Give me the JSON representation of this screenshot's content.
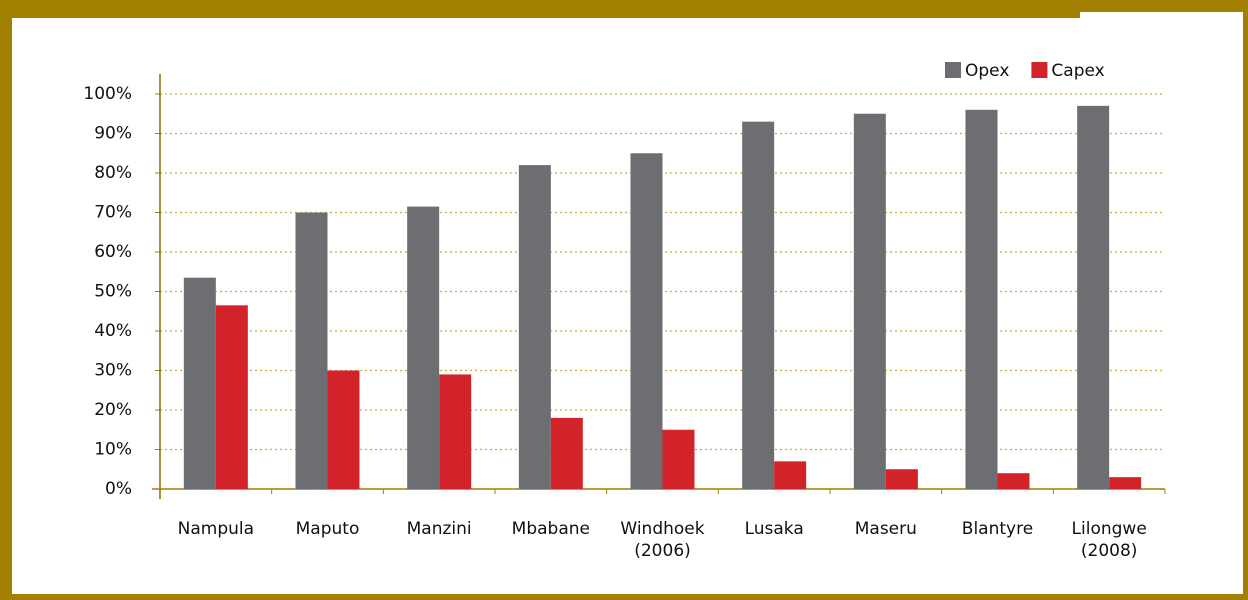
{
  "chart_data": {
    "type": "bar",
    "categories": [
      "Nampula",
      "Maputo",
      "Manzini",
      "Mbabane",
      "Windhoek\n(2006)",
      "Lusaka",
      "Maseru",
      "Blantyre",
      "Lilongwe\n(2008)"
    ],
    "series": [
      {
        "name": "Opex",
        "color": "#6d6e71",
        "values": [
          53.5,
          70,
          71.5,
          82,
          85,
          93,
          95,
          96,
          97
        ]
      },
      {
        "name": "Capex",
        "color": "#d2232a",
        "values": [
          46.5,
          30,
          29,
          18,
          15,
          7,
          5,
          4,
          3
        ]
      }
    ],
    "ylim": [
      0,
      100
    ],
    "yticks": [
      {
        "value": 0,
        "label": "0%"
      },
      {
        "value": 10,
        "label": "10%"
      },
      {
        "value": 20,
        "label": "20%"
      },
      {
        "value": 30,
        "label": "30%"
      },
      {
        "value": 40,
        "label": "40%"
      },
      {
        "value": 50,
        "label": "50%"
      },
      {
        "value": 60,
        "label": "60%"
      },
      {
        "value": 70,
        "label": "70%"
      },
      {
        "value": 80,
        "label": "80%"
      },
      {
        "value": 90,
        "label": "90%"
      },
      {
        "value": 100,
        "label": "100%"
      }
    ],
    "grid": true,
    "legend": "top-right"
  }
}
